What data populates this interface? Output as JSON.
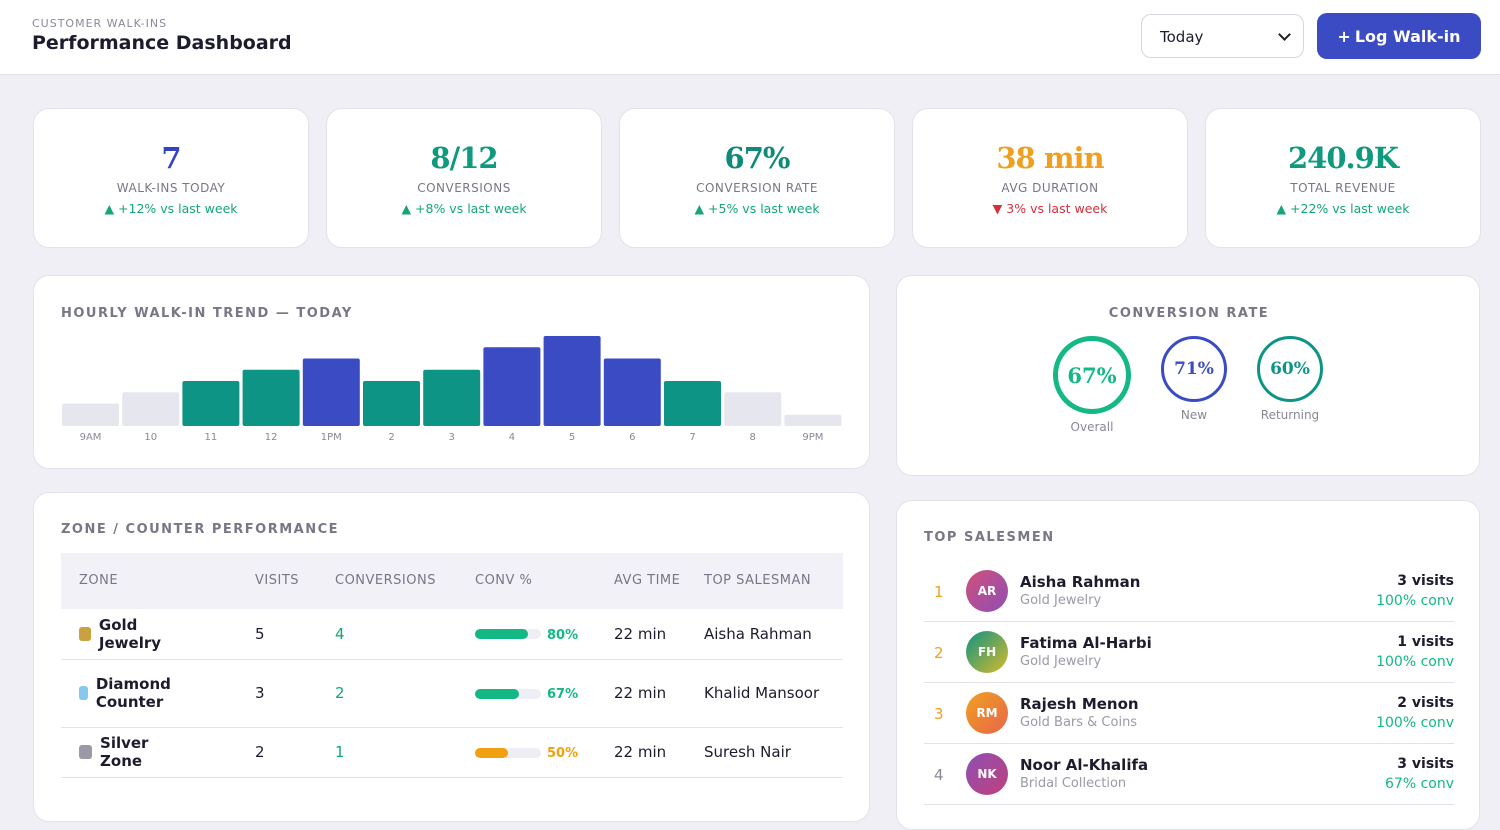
{
  "header": {
    "eyebrow": "CUSTOMER WALK-INS",
    "title": "Performance Dashboard",
    "period": "Today",
    "action": "Log Walk-in"
  },
  "kpis": [
    {
      "value": "7",
      "label": "WALK-INS TODAY",
      "change": "+12% vs last week",
      "trend": "up",
      "color": "#3444c0"
    },
    {
      "value": "8/12",
      "label": "CONVERSIONS",
      "change": "+8% vs last week",
      "trend": "up",
      "color": "#0f9a7d"
    },
    {
      "value": "67%",
      "label": "CONVERSION RATE",
      "change": "+5% vs last week",
      "trend": "up",
      "color": "#0f8a78"
    },
    {
      "value": "38 min",
      "label": "AVG DURATION",
      "change": "3% vs last week",
      "trend": "down",
      "color": "#f0a020"
    },
    {
      "value": "240.9K",
      "label": "TOTAL REVENUE",
      "change": "+22% vs last week",
      "trend": "up",
      "color": "#0f9a7d"
    }
  ],
  "hourly": {
    "title": "HOURLY WALK-IN TREND — TODAY",
    "categories": [
      "9AM",
      "10",
      "11",
      "12",
      "1PM",
      "2",
      "3",
      "4",
      "5",
      "6",
      "7",
      "8",
      "9PM"
    ],
    "values": [
      2,
      3,
      4,
      5,
      6,
      4,
      5,
      7,
      8,
      6,
      4,
      3,
      1
    ],
    "colors": [
      "#e6e6ef",
      "#e6e6ef",
      "#0e9484",
      "#0e9484",
      "#3a4bc4",
      "#0e9484",
      "#0e9484",
      "#3a4bc4",
      "#3a4bc4",
      "#3a4bc4",
      "#0e9484",
      "#e6e6ef",
      "#e6e6ef"
    ]
  },
  "conversion": {
    "title": "CONVERSION RATE",
    "rings": [
      {
        "value": "67%",
        "label": "Overall",
        "color": "#14b885"
      },
      {
        "value": "71%",
        "label": "New",
        "color": "#3a4bc4"
      },
      {
        "value": "60%",
        "label": "Returning",
        "color": "#0e9484"
      }
    ]
  },
  "zones": {
    "title": "ZONE / COUNTER PERFORMANCE",
    "columns": [
      "ZONE",
      "VISITS",
      "CONVERSIONS",
      "CONV %",
      "AVG TIME",
      "TOP SALESMAN"
    ],
    "rows": [
      {
        "zone": "Gold Jewelry",
        "swatch": "#c9a13f",
        "visits": "5",
        "conversions": "4",
        "conv": {
          "value": 80,
          "label": "80%"
        },
        "bar_color": "#14b885",
        "avg_time": "22 min",
        "top": "Aisha Rahman"
      },
      {
        "zone": "Diamond Counter",
        "swatch": "#86c8ee",
        "visits": "3",
        "conversions": "2",
        "conv": {
          "value": 67,
          "label": "67%"
        },
        "bar_color": "#14b885",
        "avg_time": "22 min",
        "top": "Khalid Mansoor"
      },
      {
        "zone": "Silver Zone",
        "swatch": "#9a9aa6",
        "visits": "2",
        "conversions": "1",
        "conv": {
          "value": 50,
          "label": "50%"
        },
        "bar_color": "#f0a010",
        "avg_time": "22 min",
        "top": "Suresh Nair"
      }
    ]
  },
  "salesmen": {
    "title": "TOP SALESMEN",
    "list": [
      {
        "rank": "1",
        "initials": "AR",
        "name": "Aisha Rahman",
        "zone": "Gold Jewelry",
        "visits": "3 visits",
        "conv": "100% conv"
      },
      {
        "rank": "2",
        "initials": "FH",
        "name": "Fatima Al-Harbi",
        "zone": "Gold Jewelry",
        "visits": "1 visits",
        "conv": "100% conv"
      },
      {
        "rank": "3",
        "initials": "RM",
        "name": "Rajesh Menon",
        "zone": "Gold Bars & Coins",
        "visits": "2 visits",
        "conv": "100% conv"
      },
      {
        "rank": "4",
        "initials": "NK",
        "name": "Noor Al-Khalifa",
        "zone": "Bridal Collection",
        "visits": "3 visits",
        "conv": "67% conv"
      }
    ]
  }
}
